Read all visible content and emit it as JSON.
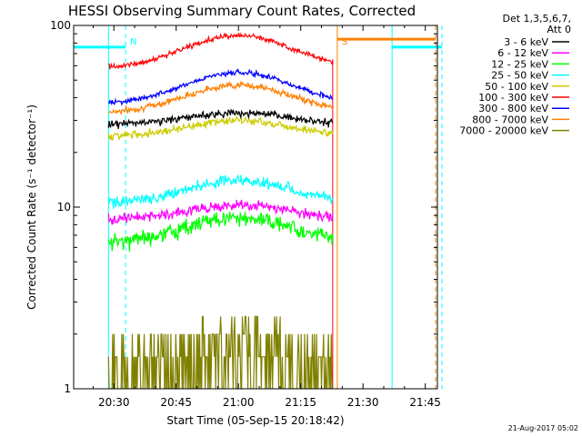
{
  "chart_data": {
    "type": "line",
    "title": "HESSI Observing Summary Count Rates, Corrected",
    "xlabel": "Start Time (05-Sep-15 20:18:42)",
    "ylabel": "Corrected Count Rate (s⁻¹ detector⁻¹)",
    "y_scale": "log",
    "ylim": [
      1,
      100
    ],
    "xlim_minutes": [
      20.31,
      21.67
    ],
    "x_ticks": [
      {
        "label": "20:30",
        "value_min": 30
      },
      {
        "label": "20:45",
        "value_min": 45
      },
      {
        "label": "21:00",
        "value_min": 60
      },
      {
        "label": "21:15",
        "value_min": 75
      },
      {
        "label": "21:30",
        "value_min": 90
      },
      {
        "label": "21:45",
        "value_min": 105
      }
    ],
    "y_ticks": [
      {
        "label": "1",
        "value": 1
      },
      {
        "label": "10",
        "value": 10
      },
      {
        "label": "100",
        "value": 100
      }
    ],
    "legend_header": [
      "Det 1,3,5,6,7,",
      "Att 0"
    ],
    "legend_position": "right",
    "data_window_min": [
      28.7,
      82.7
    ],
    "series": [
      {
        "name": "3 - 6 keV",
        "color": "#000000",
        "base": 28.5,
        "peak": 33,
        "noise": 0.06
      },
      {
        "name": "6 - 12 keV",
        "color": "#ff00ff",
        "base": 8.6,
        "peak": 10.2,
        "noise": 0.08
      },
      {
        "name": "12 - 25 keV",
        "color": "#00ff00",
        "base": 6.3,
        "peak": 8.8,
        "noise": 0.13
      },
      {
        "name": "25 - 50 keV",
        "color": "#00ffff",
        "base": 10.5,
        "peak": 14,
        "noise": 0.09
      },
      {
        "name": "50 - 100 keV",
        "color": "#cccc00",
        "base": 24.5,
        "peak": 30,
        "noise": 0.06
      },
      {
        "name": "100 - 300 keV",
        "color": "#ff0000",
        "base": 58,
        "peak": 88,
        "noise": 0.04
      },
      {
        "name": "300 - 800 keV",
        "color": "#0000ff",
        "base": 37,
        "peak": 55,
        "noise": 0.04
      },
      {
        "name": "800 - 7000 keV",
        "color": "#ff8000",
        "base": 33,
        "peak": 47,
        "noise": 0.05
      },
      {
        "name": "7000 - 20000 keV",
        "color": "#808000",
        "base": 1.8,
        "peak": 3.2,
        "noise": 0.3
      }
    ],
    "annotations": [
      {
        "text": "N",
        "type": "night",
        "x_min": 32.8,
        "color": "#00ffff"
      },
      {
        "text": "S",
        "type": "saa",
        "x_min": 83.8,
        "color": "#ff8000"
      }
    ],
    "markers": {
      "night_bars": [
        {
          "x_start_min": 20.31,
          "x_end_min": 32.8,
          "y": 76
        },
        {
          "x_start_min": 97.0,
          "x_end_min": 109.0,
          "y": 76
        }
      ],
      "saa_bar": {
        "x_start_min": 83.8,
        "x_end_min": 107.5,
        "y": 84
      },
      "cyan_lines_solid_min": [
        20.31,
        28.7,
        97.0
      ],
      "cyan_lines_dashed_min": [
        32.8,
        109.0
      ],
      "orange_lines_solid_min": [
        83.8
      ],
      "orange_lines_dashed_min": [
        107.5
      ],
      "red_line_min": 82.7
    },
    "grid": false
  },
  "footer": {
    "timestamp": "21-Aug-2017 05:02"
  }
}
